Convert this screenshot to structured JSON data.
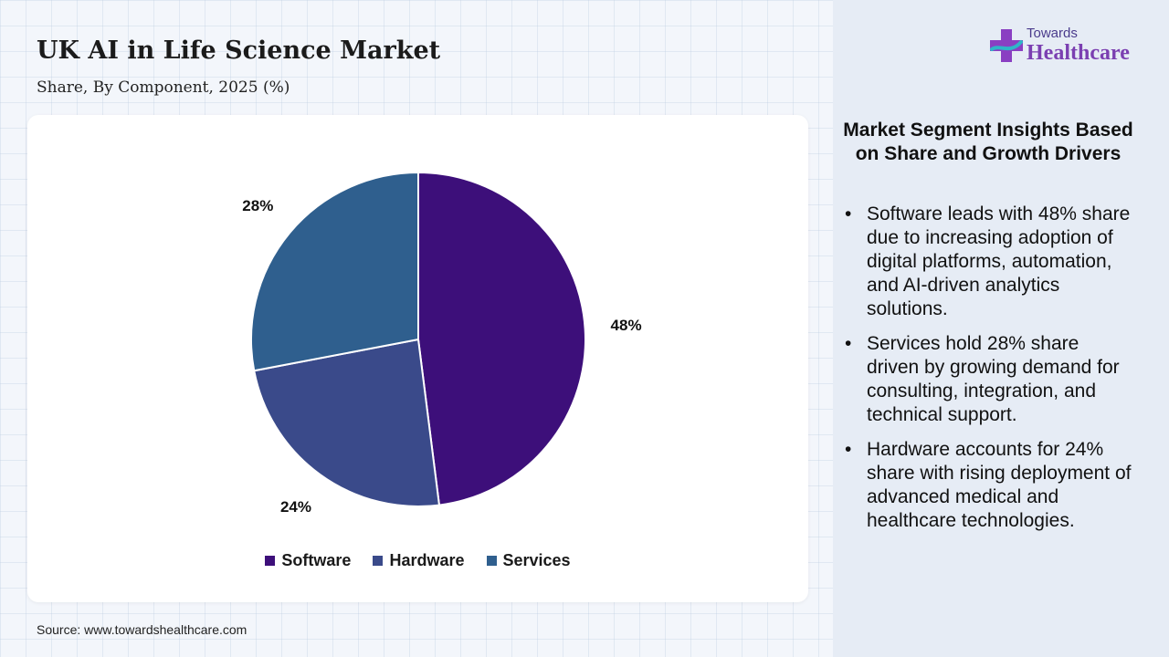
{
  "header": {
    "title": "UK AI in Life Science Market",
    "subtitle": "Share, By Component, 2025 (%)"
  },
  "logo": {
    "top": "Towards",
    "main": "Healthcare"
  },
  "chart_data": {
    "type": "pie",
    "title": "UK AI in Life Science Market",
    "subtitle": "Share, By Component, 2025 (%)",
    "categories": [
      "Software",
      "Hardware",
      "Services"
    ],
    "values": [
      48,
      24,
      28
    ],
    "labels": [
      "48%",
      "24%",
      "28%"
    ],
    "colors": [
      "#3d0f7a",
      "#3a4a8a",
      "#2f5f8e"
    ],
    "legend_position": "bottom"
  },
  "insights": {
    "title": "Market Segment Insights Based on Share and Growth Drivers",
    "items": [
      "Software leads with 48% share due to increasing adoption of digital platforms, automation, and AI-driven analytics solutions.",
      "Services hold 28% share driven by growing demand for consulting, integration, and technical support.",
      "Hardware accounts for 24% share with rising deployment of advanced medical and healthcare technologies."
    ]
  },
  "source": "Source: www.towardshealthcare.com"
}
